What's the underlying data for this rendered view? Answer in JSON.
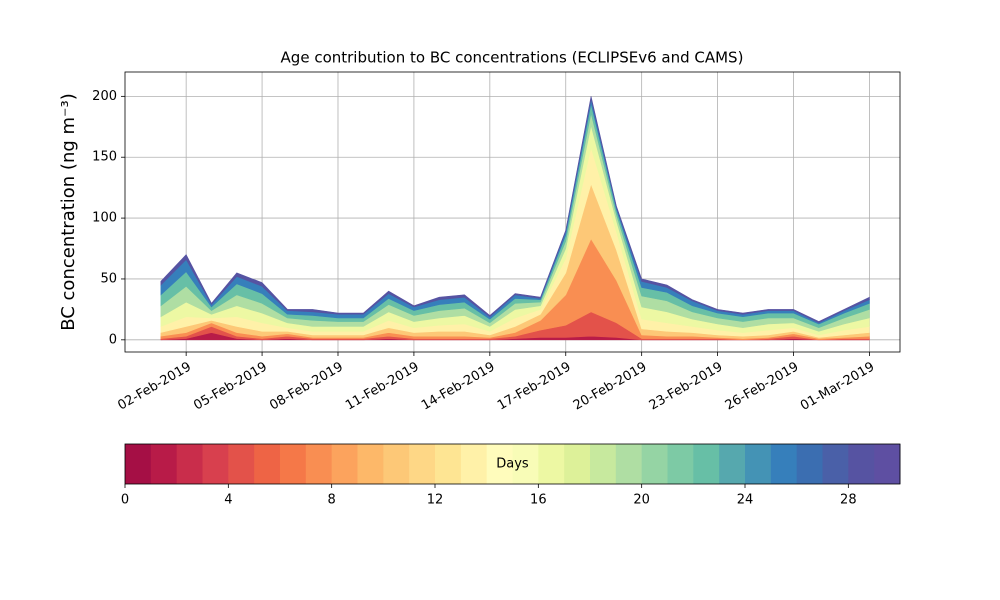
{
  "chart_data": {
    "type": "stacked_area",
    "title": "Age contribution to BC concentrations (ECLIPSEv6 and CAMS)",
    "y_label": "BC concentration (ng m⁻³)",
    "x": [
      "2019-02-01",
      "2019-02-02",
      "2019-02-03",
      "2019-02-04",
      "2019-02-05",
      "2019-02-06",
      "2019-02-07",
      "2019-02-08",
      "2019-02-09",
      "2019-02-10",
      "2019-02-11",
      "2019-02-12",
      "2019-02-13",
      "2019-02-14",
      "2019-02-15",
      "2019-02-16",
      "2019-02-17",
      "2019-02-18",
      "2019-02-19",
      "2019-02-20",
      "2019-02-21",
      "2019-02-22",
      "2019-02-23",
      "2019-02-24",
      "2019-02-25",
      "2019-02-26",
      "2019-02-27",
      "2019-02-28",
      "2019-03-01"
    ],
    "xlim": [
      "2019-01-30T14:00",
      "2019-03-02T05:00"
    ],
    "xticks": [
      {
        "value": "2019-02-02",
        "label": "02-Feb-2019"
      },
      {
        "value": "2019-02-05",
        "label": "05-Feb-2019"
      },
      {
        "value": "2019-02-08",
        "label": "08-Feb-2019"
      },
      {
        "value": "2019-02-11",
        "label": "11-Feb-2019"
      },
      {
        "value": "2019-02-14",
        "label": "14-Feb-2019"
      },
      {
        "value": "2019-02-17",
        "label": "17-Feb-2019"
      },
      {
        "value": "2019-02-20",
        "label": "20-Feb-2019"
      },
      {
        "value": "2019-02-23",
        "label": "23-Feb-2019"
      },
      {
        "value": "2019-02-26",
        "label": "26-Feb-2019"
      },
      {
        "value": "2019-03-01",
        "label": "01-Mar-2019"
      }
    ],
    "ylim": [
      -10,
      220
    ],
    "yticks": [
      0,
      50,
      100,
      150,
      200
    ],
    "grid": true,
    "series": [
      {
        "color": "#b81b48",
        "values": [
          0,
          1,
          6,
          1,
          0,
          1,
          0,
          0,
          0,
          1,
          0,
          0,
          0,
          0,
          1,
          2,
          2,
          3,
          2,
          0,
          0,
          0,
          0,
          0,
          0,
          1,
          0,
          0,
          0
        ]
      },
      {
        "color": "#e3524a",
        "values": [
          1,
          2,
          5,
          2,
          1,
          2,
          1,
          1,
          1,
          2,
          1,
          1,
          1,
          1,
          2,
          6,
          10,
          20,
          12,
          1,
          1,
          1,
          1,
          0,
          1,
          2,
          0,
          1,
          1
        ]
      },
      {
        "color": "#f98e52",
        "values": [
          2,
          3,
          3,
          3,
          2,
          2,
          1,
          1,
          1,
          3,
          2,
          2,
          2,
          1,
          3,
          8,
          25,
          60,
          35,
          3,
          2,
          2,
          1,
          1,
          1,
          2,
          1,
          1,
          2
        ]
      },
      {
        "color": "#fdc877",
        "values": [
          3,
          5,
          2,
          5,
          4,
          2,
          2,
          2,
          2,
          4,
          3,
          4,
          4,
          2,
          5,
          5,
          18,
          45,
          25,
          5,
          4,
          3,
          2,
          2,
          2,
          2,
          1,
          2,
          3
        ]
      },
      {
        "color": "#fff1a8",
        "values": [
          5,
          8,
          2,
          8,
          7,
          3,
          3,
          3,
          3,
          6,
          4,
          5,
          6,
          3,
          7,
          4,
          12,
          30,
          15,
          8,
          7,
          5,
          4,
          3,
          4,
          3,
          2,
          4,
          5
        ]
      },
      {
        "color": "#edf8a3",
        "values": [
          8,
          12,
          3,
          9,
          8,
          4,
          4,
          4,
          4,
          7,
          5,
          6,
          7,
          4,
          7,
          3,
          8,
          18,
          9,
          10,
          9,
          6,
          5,
          4,
          5,
          4,
          3,
          5,
          7
        ]
      },
      {
        "color": "#afdea3",
        "values": [
          9,
          13,
          3,
          9,
          8,
          4,
          5,
          4,
          4,
          6,
          5,
          6,
          6,
          3,
          5,
          3,
          6,
          10,
          5,
          9,
          9,
          6,
          5,
          5,
          5,
          4,
          3,
          5,
          7
        ]
      },
      {
        "color": "#67bfa6",
        "values": [
          9,
          12,
          3,
          9,
          8,
          3,
          4,
          3,
          3,
          5,
          4,
          5,
          5,
          3,
          4,
          2,
          5,
          8,
          4,
          7,
          7,
          5,
          4,
          4,
          4,
          4,
          3,
          4,
          5
        ]
      },
      {
        "color": "#367fbb",
        "values": [
          8,
          10,
          2,
          6,
          6,
          3,
          3,
          3,
          3,
          4,
          3,
          4,
          4,
          2,
          3,
          1,
          3,
          4,
          2,
          5,
          4,
          4,
          2,
          2,
          2,
          2,
          1,
          2,
          3
        ]
      },
      {
        "color": "#5653a2",
        "values": [
          3,
          4,
          1,
          3,
          3,
          1,
          2,
          1,
          1,
          2,
          1,
          2,
          2,
          1,
          1,
          1,
          1,
          2,
          1,
          2,
          2,
          1,
          1,
          1,
          1,
          1,
          1,
          1,
          2
        ]
      }
    ],
    "colorbar": {
      "label": "Days",
      "lim": [
        0,
        30
      ],
      "ticks": [
        0,
        4,
        8,
        12,
        16,
        20,
        24,
        28
      ],
      "colors": [
        "#a50f45",
        "#b81b48",
        "#c92d4b",
        "#d8404e",
        "#e3524a",
        "#ee6445",
        "#f57848",
        "#f98e52",
        "#fca35d",
        "#fdb869",
        "#fdc877",
        "#fed786",
        "#fee593",
        "#fff1a8",
        "#fffcbc",
        "#f8fcb7",
        "#edf8a3",
        "#ddf199",
        "#c7e99e",
        "#afdea3",
        "#95d4a4",
        "#7dcaa5",
        "#67bfa6",
        "#56a8ae",
        "#4493b5",
        "#367fbb",
        "#3b6eb1",
        "#4a60a8",
        "#5653a2",
        "#5e4fa2"
      ]
    }
  }
}
